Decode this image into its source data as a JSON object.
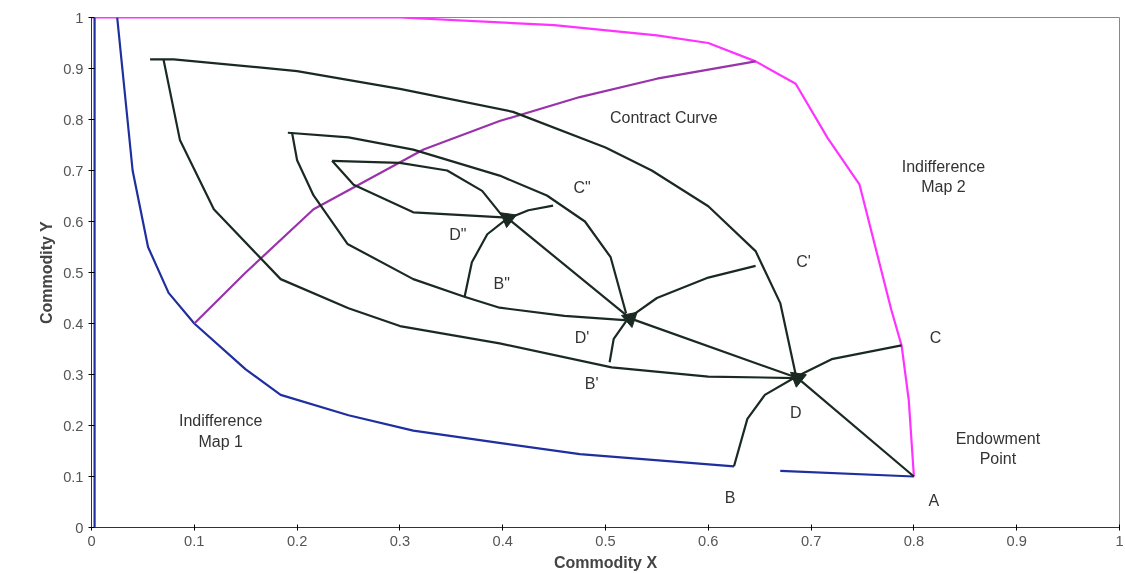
{
  "chart_data": {
    "type": "line",
    "xlabel": "Commodity X",
    "ylabel": "Commodity Y",
    "xlim": [
      0,
      1
    ],
    "ylim": [
      0,
      1
    ],
    "xticks": [
      0,
      0.1,
      0.2,
      0.3,
      0.4,
      0.5,
      0.6,
      0.7,
      0.8,
      0.9,
      1
    ],
    "yticks": [
      0,
      0.1,
      0.2,
      0.3,
      0.4,
      0.5,
      0.6,
      0.7,
      0.8,
      0.9,
      1
    ],
    "series": [
      {
        "color": "#ff33ff",
        "x": [
          0,
          0.3,
          0.45,
          0.55,
          0.6,
          0.646,
          0.685,
          0.716,
          0.747,
          0.778,
          0.788,
          0.795,
          0.8
        ],
        "values": [
          1,
          1,
          0.985,
          0.965,
          0.95,
          0.914,
          0.87,
          0.764,
          0.673,
          0.427,
          0.357,
          0.25,
          0.1
        ]
      },
      {
        "color": "#1f2f9f",
        "x": [
          0.003,
          0.003
        ],
        "values": [
          0,
          1
        ]
      },
      {
        "color": "#1f2f9f",
        "x": [
          0.025,
          0.03,
          0.04,
          0.055,
          0.075,
          0.1,
          0.15,
          0.184,
          0.25,
          0.313,
          0.4,
          0.475,
          0.625,
          null,
          0.67,
          0.8
        ],
        "values": [
          1,
          0.9,
          0.7,
          0.55,
          0.46,
          0.4,
          0.31,
          0.26,
          0.22,
          0.19,
          0.165,
          0.144,
          0.12,
          null,
          0.111,
          0.1
        ]
      },
      {
        "color": "#9933aa",
        "x": [
          0.1,
          0.15,
          0.216,
          0.323,
          0.397,
          0.475,
          0.55,
          0.646
        ],
        "values": [
          0.4,
          0.5,
          0.624,
          0.741,
          0.797,
          0.844,
          0.88,
          0.914
        ]
      },
      {
        "color": "#1a2a22",
        "x": [
          0.057,
          0.08,
          0.2,
          0.3,
          0.41,
          0.5,
          0.545,
          0.6,
          0.646,
          0.67,
          0.685
        ],
        "values": [
          0.918,
          0.918,
          0.895,
          0.86,
          0.815,
          0.745,
          0.7,
          0.63,
          0.542,
          0.44,
          0.3
        ]
      },
      {
        "color": "#1a2a22",
        "x": [
          0.07,
          0.086,
          0.119,
          0.184,
          0.25,
          0.3,
          0.397,
          0.506,
          0.6,
          0.685
        ],
        "values": [
          0.918,
          0.76,
          0.624,
          0.487,
          0.43,
          0.395,
          0.361,
          0.314,
          0.296,
          0.293
        ]
      },
      {
        "color": "#1a2a22",
        "x": [
          0.191,
          0.25,
          0.313,
          0.397,
          0.443,
          0.48,
          0.505,
          0.52
        ],
        "values": [
          0.774,
          0.765,
          0.741,
          0.69,
          0.651,
          0.6,
          0.53,
          0.42
        ]
      },
      {
        "color": "#1a2a22",
        "x": [
          0.195,
          0.2,
          0.216,
          0.249,
          0.313,
          0.362,
          0.397,
          0.46,
          0.522
        ],
        "values": [
          0.775,
          0.72,
          0.651,
          0.556,
          0.487,
          0.453,
          0.431,
          0.415,
          0.406
        ]
      },
      {
        "color": "#1a2a22",
        "x": [
          0.234,
          0.3,
          0.346,
          0.38,
          0.4
        ],
        "values": [
          0.719,
          0.715,
          0.7,
          0.66,
          0.61
        ]
      },
      {
        "color": "#1a2a22",
        "x": [
          0.234,
          0.255,
          0.313,
          0.4
        ],
        "values": [
          0.719,
          0.672,
          0.618,
          0.608
        ]
      },
      {
        "color": "#1a2a22",
        "x": [
          0.363,
          0.37,
          0.385,
          0.404,
          0.425,
          0.449
        ],
        "values": [
          0.453,
          0.52,
          0.575,
          0.605,
          0.622,
          0.631
        ]
      },
      {
        "color": "#1a2a22",
        "x": [
          0.504,
          0.508,
          0.522,
          0.55,
          0.6,
          0.646
        ],
        "values": [
          0.324,
          0.37,
          0.41,
          0.45,
          0.49,
          0.513
        ]
      },
      {
        "color": "#1a2a22",
        "x": [
          0.625,
          0.638,
          0.655,
          0.685,
          0.72,
          0.788
        ],
        "values": [
          0.12,
          0.213,
          0.26,
          0.295,
          0.33,
          0.357
        ]
      },
      {
        "color": "#1a2a22",
        "marker": "triangle",
        "x": [
          0.8,
          0.687,
          0.524,
          0.405
        ],
        "values": [
          0.1,
          0.293,
          0.41,
          0.606
        ]
      }
    ],
    "annotations": [
      {
        "text": "A",
        "x": 0.8,
        "y": 0.1
      },
      {
        "text": "B",
        "x": 0.625,
        "y": 0.12
      },
      {
        "text": "C",
        "x": 0.788,
        "y": 0.357
      },
      {
        "text": "D",
        "x": 0.685,
        "y": 0.295
      },
      {
        "text": "B'",
        "x": 0.504,
        "y": 0.324
      },
      {
        "text": "C'",
        "x": 0.646,
        "y": 0.513
      },
      {
        "text": "D'",
        "x": 0.522,
        "y": 0.41
      },
      {
        "text": "B\"",
        "x": 0.363,
        "y": 0.453
      },
      {
        "text": "C\"",
        "x": 0.449,
        "y": 0.631
      },
      {
        "text": "D\"",
        "x": 0.404,
        "y": 0.605
      },
      {
        "text": "Contract Curve",
        "x": 0.475,
        "y": 0.844
      },
      {
        "text": "Indifference\nMap 2",
        "x": 0.747,
        "y": 0.673
      },
      {
        "text": "Endowment\nPoint",
        "x": 0.8,
        "y": 0.1
      },
      {
        "text": "Indifference\nMap 1",
        "x": 0.184,
        "y": 0.26
      }
    ]
  }
}
